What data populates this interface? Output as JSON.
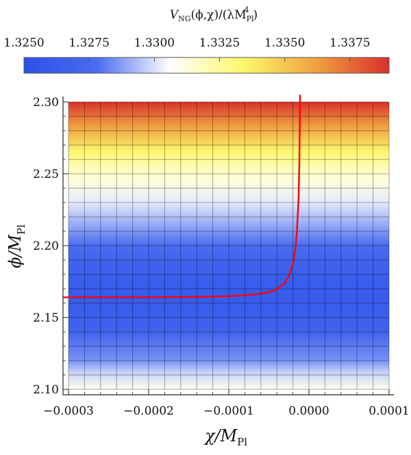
{
  "chart_data": {
    "type": "heatmap",
    "colorbar": {
      "label": "V_NG(ϕ,χ)/(λM_Pl^4)",
      "label_parts": {
        "v": "V",
        "v_sub": "NG",
        "args": "(ϕ,χ)/(λM",
        "m_sub": "Pl",
        "m_sup": "4",
        "close": ")"
      },
      "ticks": [
        "1.3250",
        "1.3275",
        "1.3300",
        "1.3325",
        "1.3350",
        "1.3375"
      ],
      "tick_values": [
        1.325,
        1.3275,
        1.33,
        1.3325,
        1.335,
        1.3375
      ],
      "range": [
        1.325,
        1.339
      ],
      "colormap": [
        "#2b50e8",
        "#4a6cf0",
        "#ffffff",
        "#fdf86a",
        "#f0a040",
        "#d8302a"
      ],
      "placement": "top"
    },
    "xlabel": "χ/M_Pl",
    "xlabel_parts": {
      "main": "χ/M",
      "sub": "Pl"
    },
    "ylabel": "ϕ/M_Pl",
    "ylabel_parts": {
      "main": "ϕ/M",
      "sub": "Pl"
    },
    "xlim": [
      -0.0003,
      0.0001
    ],
    "ylim": [
      2.1,
      2.3
    ],
    "x_ticks": [
      -0.0003,
      -0.0002,
      -0.0001,
      0.0,
      0.0001
    ],
    "x_tick_labels": [
      "−0.0003",
      "−0.0002",
      "−0.0001",
      "0.0000",
      "0.0001"
    ],
    "y_ticks": [
      2.1,
      2.15,
      2.2,
      2.25,
      2.3
    ],
    "y_tick_labels": [
      "2.10",
      "2.15",
      "2.20",
      "2.25",
      "2.30"
    ],
    "grid": true,
    "grid_step": {
      "x": 2e-05,
      "y": 0.01
    },
    "potential_profile": {
      "phi": [
        2.1,
        2.112,
        2.12,
        2.14,
        2.155,
        2.165,
        2.175,
        2.19,
        2.2,
        2.215,
        2.23,
        2.245,
        2.255,
        2.265,
        2.275,
        2.285,
        2.3
      ],
      "value": [
        1.331,
        1.3297,
        1.3285,
        1.327,
        1.3263,
        1.3262,
        1.3263,
        1.327,
        1.3278,
        1.329,
        1.3302,
        1.3312,
        1.332,
        1.3333,
        1.335,
        1.3365,
        1.339
      ]
    },
    "series": [
      {
        "type": "line",
        "color": "#ff0000",
        "x": [
          -0.0003,
          -0.00025,
          -0.0002,
          -0.00015,
          -0.0001,
          -7e-05,
          -5e-05,
          -4e-05,
          -3e-05,
          -2.5e-05,
          -2e-05,
          -1.7e-05,
          -1.5e-05,
          -1.3e-05,
          -1.2e-05,
          -1.15e-05,
          -1.1e-05
        ],
        "y": [
          2.164,
          2.164,
          2.164,
          2.1642,
          2.1648,
          2.1658,
          2.1675,
          2.1695,
          2.174,
          2.179,
          2.187,
          2.197,
          2.21,
          2.232,
          2.255,
          2.28,
          2.305
        ]
      }
    ]
  }
}
